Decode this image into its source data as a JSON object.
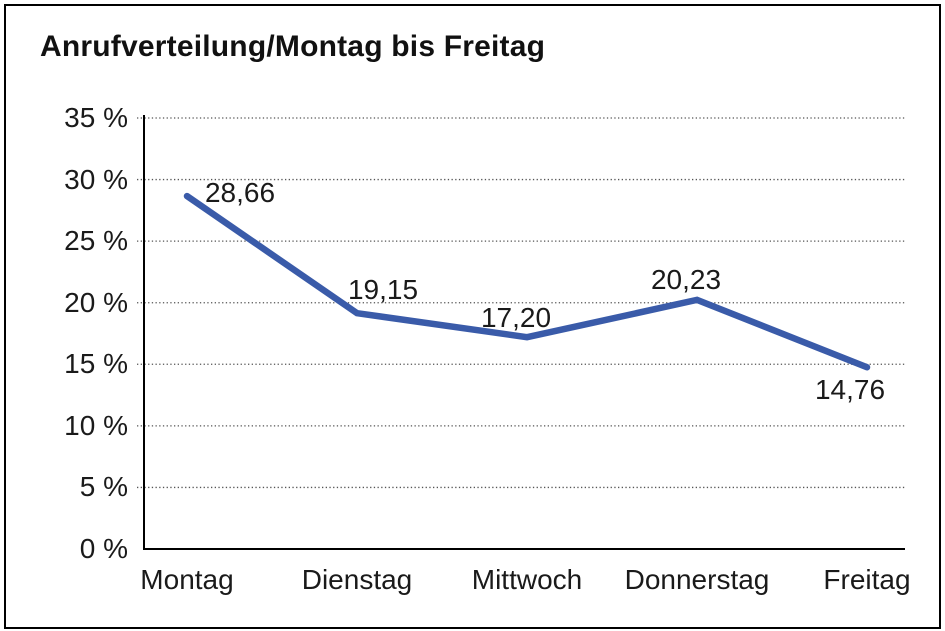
{
  "chart_data": {
    "type": "line",
    "title": "Anrufverteilung/Montag bis Freitag",
    "categories": [
      "Montag",
      "Dienstag",
      "Mittwoch",
      "Donnerstag",
      "Freitag"
    ],
    "series": [
      {
        "name": "Anrufverteilung",
        "values": [
          28.66,
          19.15,
          17.2,
          20.23,
          14.76
        ]
      }
    ],
    "point_labels": [
      "28,66",
      "19,15",
      "17,20",
      "20,23",
      "14,76"
    ],
    "y_tick_labels": [
      "0 %",
      "5 %",
      "10 %",
      "15 %",
      "20 %",
      "25 %",
      "30 %",
      "35 %"
    ],
    "ylim": [
      0,
      35
    ],
    "y_step": 5,
    "xlabel": "",
    "ylabel": "",
    "legend": "none",
    "grid": "horizontal-dotted",
    "line_color": "#3A5BA9",
    "axis_color": "#000000",
    "grid_color": "#555555",
    "background_color": "#ffffff"
  }
}
